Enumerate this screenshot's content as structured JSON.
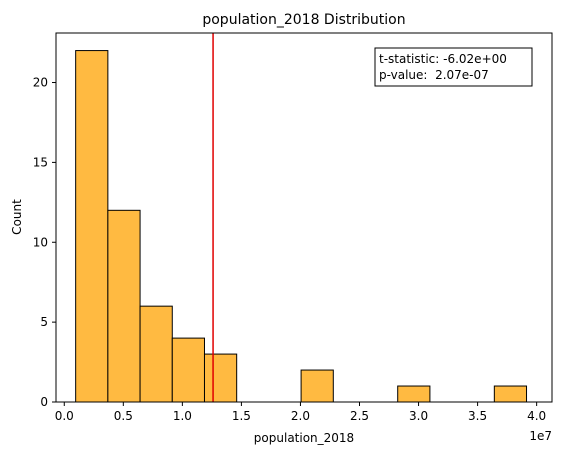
{
  "chart_data": {
    "type": "bar",
    "title": "population_2018 Distribution",
    "xlabel": "population_2018",
    "ylabel": "Count",
    "x_multiplier": "1e7",
    "xlim": [
      -0.07,
      4.13
    ],
    "ylim": [
      0,
      23.1
    ],
    "xticks": [
      0.0,
      0.5,
      1.0,
      1.5,
      2.0,
      2.5,
      3.0,
      3.5,
      4.0
    ],
    "xtick_labels": [
      "0.0",
      "0.5",
      "1.0",
      "1.5",
      "2.0",
      "2.5",
      "3.0",
      "3.5",
      "4.0"
    ],
    "yticks": [
      0,
      5,
      10,
      15,
      20
    ],
    "ytick_labels": [
      "0",
      "5",
      "10",
      "15",
      "20"
    ],
    "bin_start": 0.0965,
    "bin_width": 0.2727,
    "values": [
      22,
      12,
      6,
      4,
      3,
      0,
      0,
      2,
      0,
      0,
      1,
      0,
      0,
      1
    ],
    "bar_color": "#ffba41",
    "bar_edge_color": "#000000",
    "reference_line": {
      "x": 1.26,
      "color": "#e00000"
    },
    "stats_box": {
      "position": "top-right",
      "line1": "t-statistic: -6.02e+00",
      "line2": "p-value:  2.07e-07"
    },
    "grid": false
  }
}
